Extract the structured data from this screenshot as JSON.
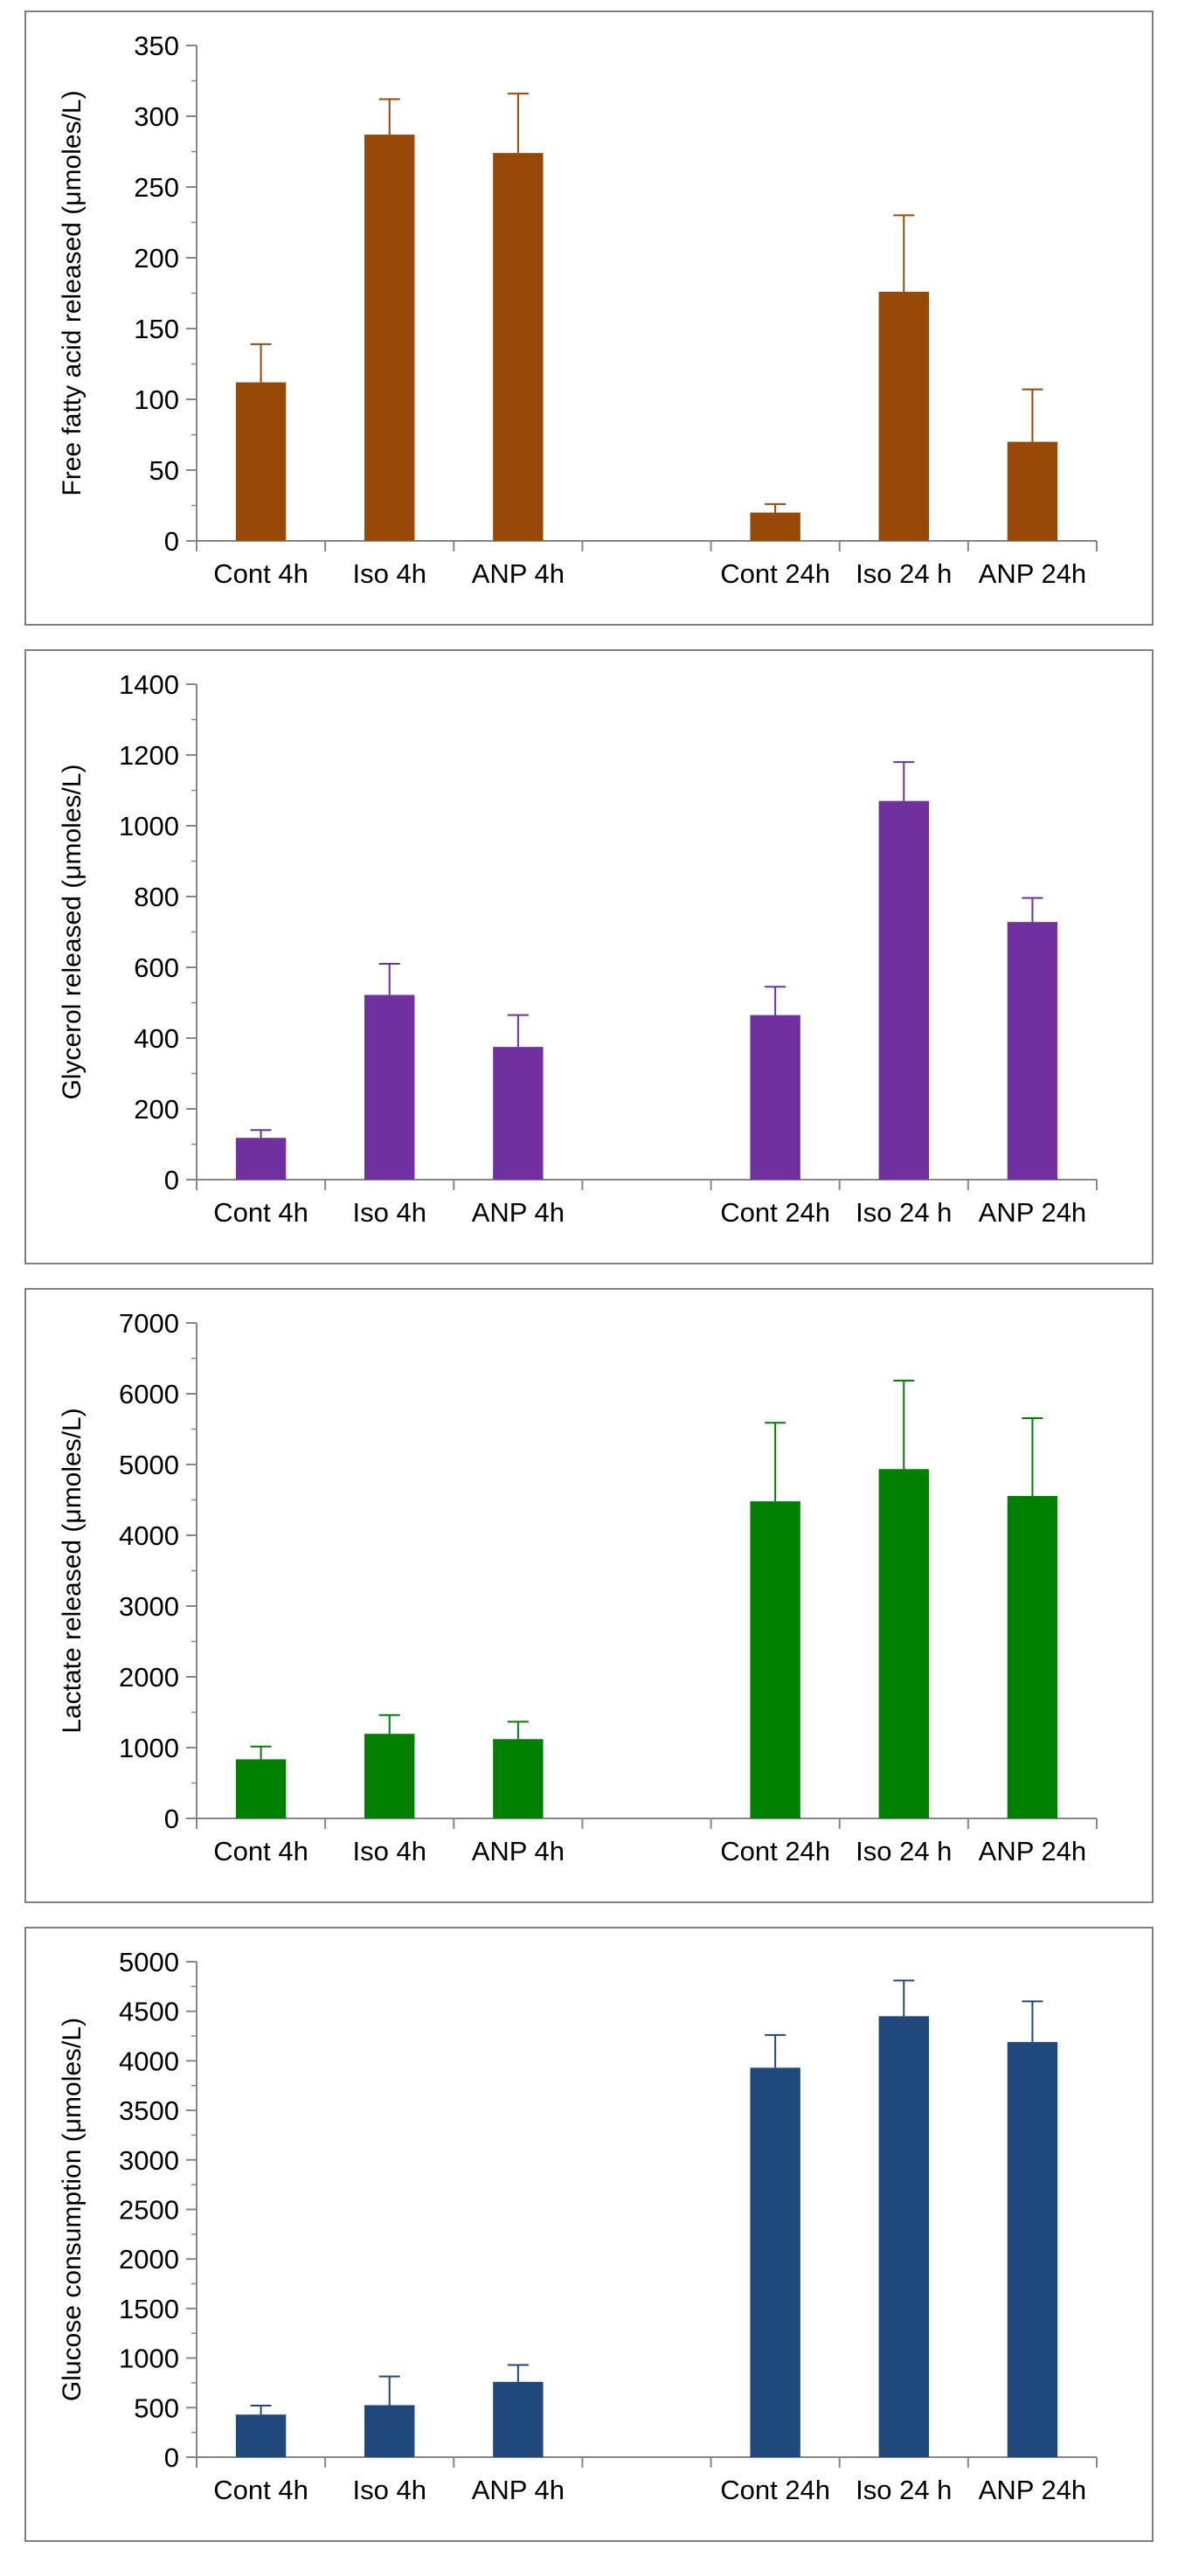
{
  "chart_data": [
    {
      "type": "bar",
      "ylabel": "Free fatty acid released (μmoles/L)",
      "xlabel": "",
      "ylim": [
        0,
        350
      ],
      "yticks": [
        "0",
        "50",
        "100",
        "150",
        "200",
        "250",
        "300",
        "350"
      ],
      "categories": [
        "Cont 4h",
        "Iso 4h",
        "ANP 4h",
        "",
        "Cont 24h",
        "Iso 24 h",
        "ANP 24h"
      ],
      "series": [
        {
          "values": [
            112,
            287,
            274,
            null,
            20,
            176,
            70
          ]
        }
      ],
      "errors": [
        27,
        25,
        42,
        null,
        6,
        54,
        37
      ],
      "color": "#984807",
      "grid": false
    },
    {
      "type": "bar",
      "ylabel": "Glycerol released (μmoles/L)",
      "xlabel": "",
      "ylim": [
        0,
        1400
      ],
      "yticks": [
        "0",
        "200",
        "400",
        "600",
        "800",
        "1000",
        "1200",
        "1400"
      ],
      "categories": [
        "Cont 4h",
        "Iso 4h",
        "ANP 4h",
        "",
        "Cont 24h",
        "Iso 24 h",
        "ANP 24h"
      ],
      "series": [
        {
          "values": [
            118,
            522,
            375,
            null,
            465,
            1070,
            728
          ]
        }
      ],
      "errors": [
        22,
        88,
        90,
        null,
        80,
        110,
        68
      ],
      "color": "#7030a0",
      "grid": false
    },
    {
      "type": "bar",
      "ylabel": "Lactate released (μmoles/L)",
      "xlabel": "",
      "ylim": [
        0,
        7000
      ],
      "yticks": [
        "0",
        "1000",
        "2000",
        "3000",
        "4000",
        "5000",
        "6000",
        "7000"
      ],
      "categories": [
        "Cont 4h",
        "Iso 4h",
        "ANP 4h",
        "",
        "Cont 24h",
        "Iso 24 h",
        "ANP 24h"
      ],
      "series": [
        {
          "values": [
            835,
            1195,
            1120,
            null,
            4480,
            4935,
            4555
          ]
        }
      ],
      "errors": [
        180,
        265,
        245,
        null,
        1110,
        1250,
        1100
      ],
      "color": "#008000",
      "grid": false
    },
    {
      "type": "bar",
      "ylabel": "Glucose consumption (μmoles/L)",
      "xlabel": "",
      "ylim": [
        0,
        5000
      ],
      "yticks": [
        "0",
        "500",
        "1000",
        "1500",
        "2000",
        "2500",
        "3000",
        "3500",
        "4000",
        "4500",
        "5000"
      ],
      "categories": [
        "Cont 4h",
        "Iso 4h",
        "ANP 4h",
        "",
        "Cont 24h",
        "Iso 24 h",
        "ANP 24h"
      ],
      "series": [
        {
          "values": [
            430,
            525,
            760,
            null,
            3930,
            4450,
            4190
          ]
        }
      ],
      "errors": [
        90,
        290,
        170,
        null,
        330,
        360,
        410
      ],
      "color": "#1f497d",
      "grid": false
    }
  ]
}
